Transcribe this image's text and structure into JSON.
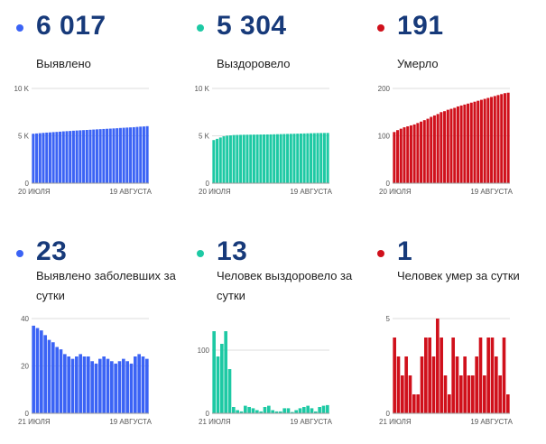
{
  "panels": [
    {
      "value": "6 017",
      "label": "Выявлено",
      "color": "#3b63f5",
      "chart_data": {
        "type": "bar",
        "ylim": [
          0,
          10000
        ],
        "yticks": [
          {
            "value": 0,
            "label": "0"
          },
          {
            "value": 5000,
            "label": "5 K"
          },
          {
            "value": 10000,
            "label": "10 K"
          }
        ],
        "xstart": "20 ИЮЛЯ",
        "xend": "19 АВГУСТА",
        "values": [
          5220,
          5250,
          5280,
          5310,
          5340,
          5360,
          5390,
          5410,
          5440,
          5470,
          5490,
          5510,
          5540,
          5560,
          5580,
          5600,
          5620,
          5640,
          5660,
          5680,
          5700,
          5720,
          5740,
          5760,
          5780,
          5800,
          5830,
          5850,
          5870,
          5890,
          5910,
          5940,
          5970,
          5990,
          6017
        ]
      }
    },
    {
      "value": "5 304",
      "label": "Выздоровело",
      "color": "#1dc9a4",
      "chart_data": {
        "type": "bar",
        "ylim": [
          0,
          10000
        ],
        "yticks": [
          {
            "value": 0,
            "label": "0"
          },
          {
            "value": 5000,
            "label": "5 K"
          },
          {
            "value": 10000,
            "label": "10 K"
          }
        ],
        "xstart": "20 ИЮЛЯ",
        "xend": "19 АВГУСТА",
        "values": [
          4550,
          4680,
          4820,
          4950,
          5020,
          5050,
          5080,
          5090,
          5100,
          5110,
          5115,
          5120,
          5125,
          5130,
          5135,
          5140,
          5145,
          5150,
          5160,
          5170,
          5180,
          5190,
          5200,
          5210,
          5220,
          5230,
          5240,
          5250,
          5260,
          5270,
          5280,
          5290,
          5295,
          5300,
          5304
        ]
      }
    },
    {
      "value": "191",
      "label": "Умерло",
      "color": "#d0101b",
      "chart_data": {
        "type": "bar",
        "ylim": [
          0,
          200
        ],
        "yticks": [
          {
            "value": 0,
            "label": "0"
          },
          {
            "value": 100,
            "label": "100"
          },
          {
            "value": 200,
            "label": "200"
          }
        ],
        "xstart": "20 ИЮЛЯ",
        "xend": "19 АВГУСТА",
        "values": [
          108,
          112,
          115,
          118,
          120,
          122,
          124,
          127,
          130,
          133,
          136,
          140,
          143,
          146,
          150,
          152,
          155,
          157,
          159,
          162,
          164,
          166,
          168,
          170,
          172,
          174,
          176,
          178,
          180,
          182,
          184,
          186,
          188,
          190,
          191
        ]
      }
    },
    {
      "value": "23",
      "label": "Выявлено заболевших за сутки",
      "color": "#3b63f5",
      "chart_data": {
        "type": "bar",
        "ylim": [
          0,
          40
        ],
        "yticks": [
          {
            "value": 0,
            "label": "0"
          },
          {
            "value": 20,
            "label": "20"
          },
          {
            "value": 40,
            "label": "40"
          }
        ],
        "xstart": "21 ИЮЛЯ",
        "xend": "19 АВГУСТА",
        "values": [
          37,
          36,
          35,
          33,
          31,
          30,
          28,
          27,
          25,
          24,
          23,
          24,
          25,
          24,
          24,
          22,
          21,
          23,
          24,
          23,
          22,
          21,
          22,
          23,
          22,
          21,
          24,
          25,
          24,
          23
        ]
      }
    },
    {
      "value": "13",
      "label": "Человек выздоровело за сутки",
      "color": "#1dc9a4",
      "chart_data": {
        "type": "bar",
        "ylim": [
          0,
          150
        ],
        "yticks": [
          {
            "value": 0,
            "label": "0"
          },
          {
            "value": 100,
            "label": "100"
          }
        ],
        "xstart": "21 ИЮЛЯ",
        "xend": "19 АВГУСТА",
        "values": [
          130,
          90,
          110,
          130,
          70,
          10,
          5,
          3,
          12,
          10,
          8,
          5,
          3,
          10,
          12,
          5,
          3,
          3,
          8,
          8,
          2,
          5,
          8,
          10,
          12,
          8,
          3,
          10,
          12,
          13
        ]
      }
    },
    {
      "value": "1",
      "label": "Человек умер за сутки",
      "color": "#d0101b",
      "chart_data": {
        "type": "bar",
        "ylim": [
          0,
          5
        ],
        "yticks": [
          {
            "value": 0,
            "label": "0"
          },
          {
            "value": 5,
            "label": "5"
          }
        ],
        "xstart": "21 ИЮЛЯ",
        "xend": "19 АВГУСТА",
        "values": [
          4,
          3,
          2,
          3,
          2,
          1,
          1,
          3,
          4,
          4,
          3,
          5,
          4,
          2,
          1,
          4,
          3,
          2,
          3,
          2,
          2,
          3,
          4,
          2,
          4,
          4,
          3,
          2,
          4,
          1
        ]
      }
    }
  ]
}
